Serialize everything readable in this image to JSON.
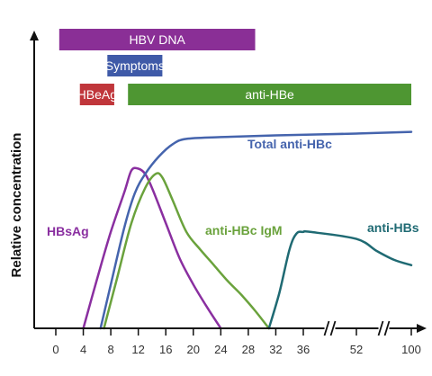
{
  "chart_data": {
    "type": "line",
    "ylabel": "Relative concentration",
    "xlabel": "",
    "x_tick_labels": [
      "0",
      "4",
      "8",
      "12",
      "16",
      "20",
      "24",
      "28",
      "32",
      "36",
      "52",
      "100"
    ],
    "x_axis_breaks": [
      "between 36 and 52",
      "between 52 and 100"
    ],
    "colors": {
      "axis": "#111111",
      "hbv_dna": "#8a2f96",
      "symptoms": "#3f5aa8",
      "hbeag": "#c0363b",
      "anti_hbe": "#4e9632",
      "total_anti_hbc": "#4564ad",
      "hbsag": "#8a2fa0",
      "anti_hbc_igm": "#6aa23c",
      "anti_hbs": "#1f6a73"
    },
    "bars": [
      {
        "name": "HBV DNA",
        "x_start": 0.5,
        "x_end": 29,
        "color": "#8a2f96"
      },
      {
        "name": "Symptoms",
        "x_start": 7.5,
        "x_end": 15.5,
        "color": "#3f5aa8"
      },
      {
        "name": "HBeAg",
        "x_start": 3.5,
        "x_end": 8.5,
        "color": "#c0363b"
      },
      {
        "name": "anti-HBe",
        "x_start": 10.5,
        "x_end": 100,
        "color": "#4e9632"
      }
    ],
    "series": [
      {
        "name": "HBsAg",
        "color": "#8a2fa0",
        "points": [
          [
            4,
            0
          ],
          [
            6,
            0.28
          ],
          [
            8,
            0.55
          ],
          [
            10,
            0.78
          ],
          [
            11,
            0.9
          ],
          [
            12,
            0.91
          ],
          [
            13,
            0.88
          ],
          [
            14,
            0.8
          ],
          [
            16,
            0.6
          ],
          [
            18,
            0.4
          ],
          [
            20,
            0.25
          ],
          [
            22,
            0.12
          ],
          [
            24,
            0
          ]
        ]
      },
      {
        "name": "anti-HBc IgM",
        "color": "#6aa23c",
        "points": [
          [
            7,
            0
          ],
          [
            9,
            0.3
          ],
          [
            11,
            0.6
          ],
          [
            13,
            0.8
          ],
          [
            14.5,
            0.88
          ],
          [
            15.5,
            0.86
          ],
          [
            17,
            0.73
          ],
          [
            19,
            0.55
          ],
          [
            21,
            0.45
          ],
          [
            23,
            0.36
          ],
          [
            25,
            0.27
          ],
          [
            27,
            0.19
          ],
          [
            29,
            0.1
          ],
          [
            31,
            0
          ]
        ]
      },
      {
        "name": "Total anti-HBc",
        "color": "#4564ad",
        "points": [
          [
            6.5,
            0
          ],
          [
            8,
            0.25
          ],
          [
            10,
            0.58
          ],
          [
            11.5,
            0.77
          ],
          [
            13,
            0.88
          ],
          [
            15,
            0.98
          ],
          [
            17,
            1.05
          ],
          [
            19,
            1.08
          ],
          [
            24,
            1.09
          ],
          [
            32,
            1.1
          ],
          [
            52,
            1.11
          ],
          [
            100,
            1.12
          ]
        ]
      },
      {
        "name": "anti-HBs",
        "color": "#1f6a73",
        "points": [
          [
            31,
            0
          ],
          [
            32.5,
            0.2
          ],
          [
            34,
            0.45
          ],
          [
            35,
            0.54
          ],
          [
            36,
            0.55
          ],
          [
            38,
            0.55
          ],
          [
            52,
            0.51
          ],
          [
            70,
            0.44
          ],
          [
            85,
            0.39
          ],
          [
            100,
            0.36
          ]
        ]
      }
    ]
  }
}
